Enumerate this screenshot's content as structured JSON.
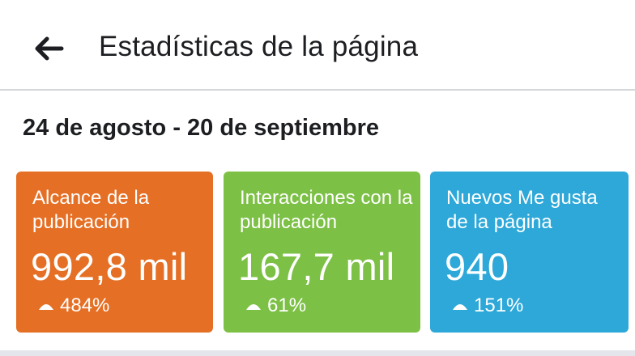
{
  "header": {
    "back_icon": "arrow-left-icon",
    "title": "Estadísticas de la página"
  },
  "date_range": "24 de agosto - 20 de septiembre",
  "cards": [
    {
      "label": "Alcance de la publicación",
      "value": "992,8 mil",
      "change": "484%",
      "trend_icon": "triangle-up-icon",
      "color": "#e56f24"
    },
    {
      "label": "Interacciones con la publicación",
      "value": "167,7 mil",
      "change": "61%",
      "trend_icon": "triangle-up-icon",
      "color": "#7cc045"
    },
    {
      "label": "Nuevos Me gusta de la página",
      "value": "940",
      "change": "151%",
      "trend_icon": "triangle-up-icon",
      "color": "#2da8d8"
    }
  ]
}
